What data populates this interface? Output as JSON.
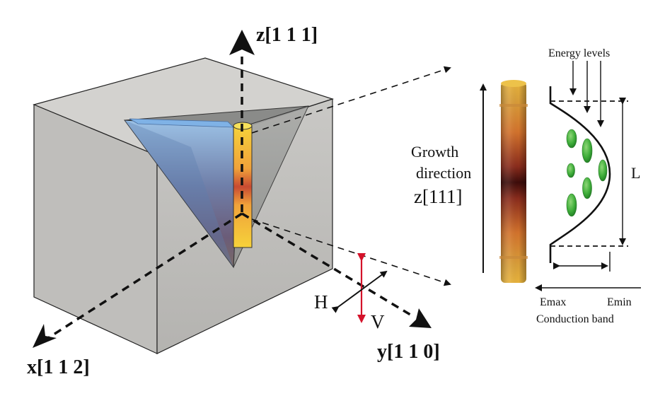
{
  "axes": {
    "z": "z[1 1 1]",
    "x": "x[1 1 2]",
    "y": "y[1 1 0]"
  },
  "polarization": {
    "h": "H",
    "v": "V"
  },
  "growth": {
    "line1": "Growth",
    "line2": "direction",
    "line3": "z[111]"
  },
  "band": {
    "energy_levels": "Energy levels",
    "length": "L",
    "emax": "Emax",
    "emin": "Emin",
    "conduction_band": "Conduction band"
  },
  "colors": {
    "block": "#bdbcb9",
    "pyramid": "#7a8ea8",
    "nanowire": "#f2c029",
    "dot_center": "#3d0c0a",
    "energy_level": "#3fae3a",
    "polarization_v": "#d4122a"
  }
}
